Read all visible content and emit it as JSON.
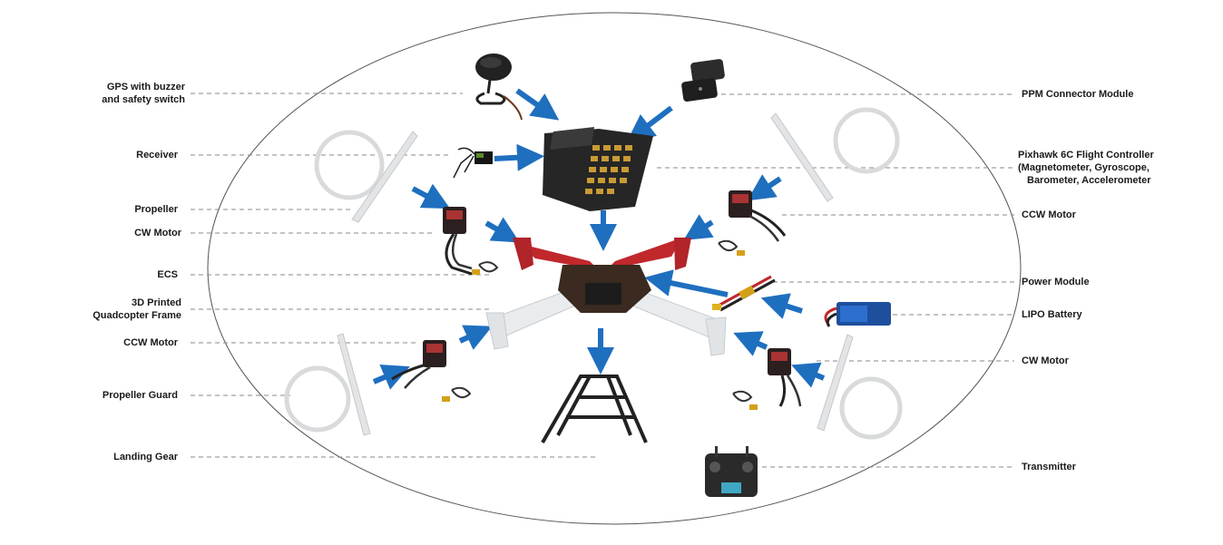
{
  "labels": {
    "gps": "GPS with buzzer",
    "gps2": "and safety switch",
    "receiver": "Receiver",
    "propeller": "Propeller",
    "cw_motor_left": "CW Motor",
    "ecs": "ECS",
    "frame": "3D Printed",
    "frame2": "Quadcopter Frame",
    "ccw_motor_left": "CCW Motor",
    "propeller_guard": "Propeller Guard",
    "landing_gear": "Landing Gear",
    "ppm": "PPM Connector Module",
    "pixhawk": "Pixhawk 6C Flight Controller",
    "pixhawk2": "(Magnetometer, Gyroscope,",
    "pixhawk3": "Barometer, Accelerometer",
    "ccw_motor_right": "CCW Motor",
    "power_module": "Power Module",
    "lipo": "LIPO Battery",
    "cw_motor_right": "CW Motor",
    "transmitter": "Transmitter"
  },
  "colors": {
    "arrow": "#1f6fbf",
    "frame_arm_red": "#c0282c",
    "frame_arm_white": "#e9ecef",
    "controller_body": "#2b2b2b",
    "pin_header": "#d4a63a",
    "leader_line": "#8a8a8a",
    "ellipse": "#555555"
  },
  "icons": [
    "gps-icon",
    "ppm-module-icon",
    "receiver-icon",
    "flight-controller-icon",
    "propeller-icon",
    "propeller-guard-icon",
    "motor-icon",
    "esc-connector-icon",
    "frame-icon",
    "power-module-icon",
    "battery-icon",
    "landing-gear-icon",
    "transmitter-icon"
  ]
}
